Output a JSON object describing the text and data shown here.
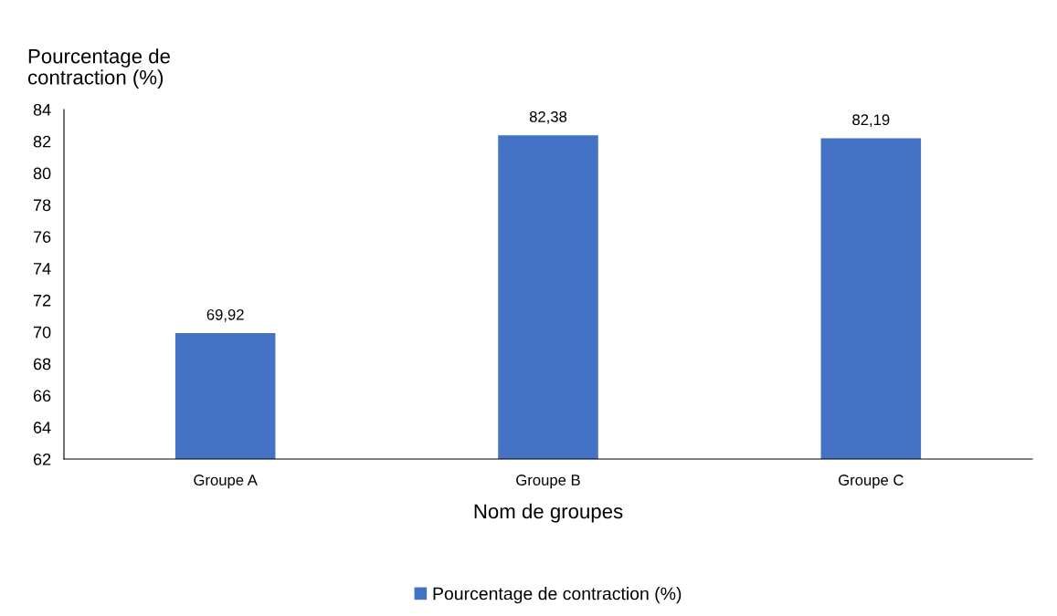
{
  "chart_data": {
    "type": "bar",
    "ylabel": "Pourcentage de\ncontraction (%)",
    "xlabel": "Nom de groupes",
    "categories": [
      "Groupe A",
      "Groupe B",
      "Groupe C"
    ],
    "series": [
      {
        "name": "Pourcentage de contraction (%)",
        "color": "#4472c4",
        "values": [
          69.92,
          82.38,
          82.19
        ],
        "value_labels": [
          "69,92",
          "82,38",
          "82,19"
        ]
      }
    ],
    "ylim": [
      62,
      84
    ],
    "yticks": [
      62,
      64,
      66,
      68,
      70,
      72,
      74,
      76,
      78,
      80,
      82,
      84
    ],
    "grid": false,
    "legend": "bottom"
  }
}
